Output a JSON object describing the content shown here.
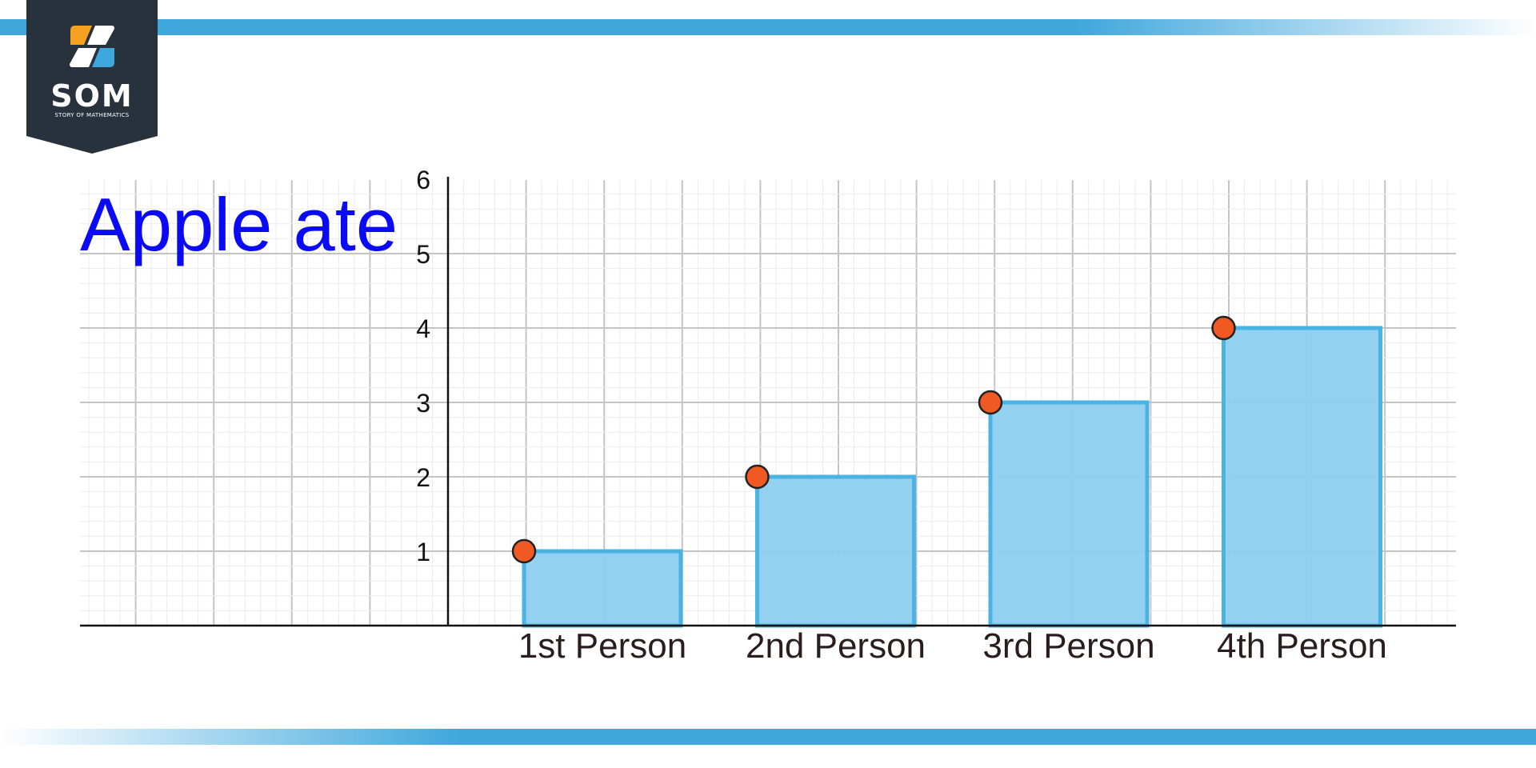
{
  "brand": {
    "logo_text": "SOM",
    "logo_subtext": "STORY OF MATHEMATICS",
    "colors": {
      "dark": "#27323d",
      "orange": "#f4a21f",
      "blue": "#3ea7dc",
      "band": "#3ea7dc"
    }
  },
  "chart_data": {
    "type": "bar",
    "title": "Apple ate",
    "categories": [
      "1st Person",
      "2nd Person",
      "3rd Person",
      "4th Person"
    ],
    "values": [
      1,
      2,
      3,
      4
    ],
    "ylim": [
      0,
      6
    ],
    "yticks": [
      1,
      2,
      3,
      4,
      5,
      6
    ],
    "grid": true,
    "colors": {
      "bar_fill": "#8ecfef",
      "bar_stroke": "#49b4e3",
      "marker": "#f05a22",
      "title": "#0a0af5"
    }
  }
}
